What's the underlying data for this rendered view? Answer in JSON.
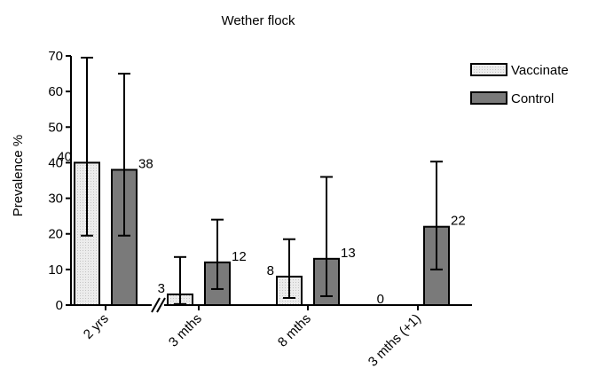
{
  "chart_data": {
    "type": "bar",
    "title": "Wether flock",
    "xlabel": "",
    "ylabel": "Prevalence %",
    "ylim": [
      0,
      70
    ],
    "yticks": [
      0,
      10,
      20,
      30,
      40,
      50,
      60,
      70
    ],
    "categories": [
      "2 yrs",
      "3 mths",
      "8 mths",
      "3 mths (+1)"
    ],
    "axis_break_between": [
      "2 yrs",
      "3 mths"
    ],
    "legend_position": "top-right",
    "grid": false,
    "series": [
      {
        "name": "Vaccinate",
        "color": "#e6e6e6",
        "values": [
          40,
          3,
          8,
          0
        ],
        "error_low": [
          19.5,
          0.3,
          2,
          0
        ],
        "error_high": [
          69.5,
          13.5,
          18.5,
          0
        ],
        "data_labels": [
          "40",
          "3",
          "8",
          "0"
        ]
      },
      {
        "name": "Control",
        "color": "#7a7a7a",
        "values": [
          38,
          12,
          13,
          22
        ],
        "error_low": [
          19.5,
          4.5,
          2.5,
          10
        ],
        "error_high": [
          65,
          24,
          36,
          40.3
        ],
        "data_labels": [
          "38",
          "12",
          "13",
          "22"
        ]
      }
    ]
  }
}
